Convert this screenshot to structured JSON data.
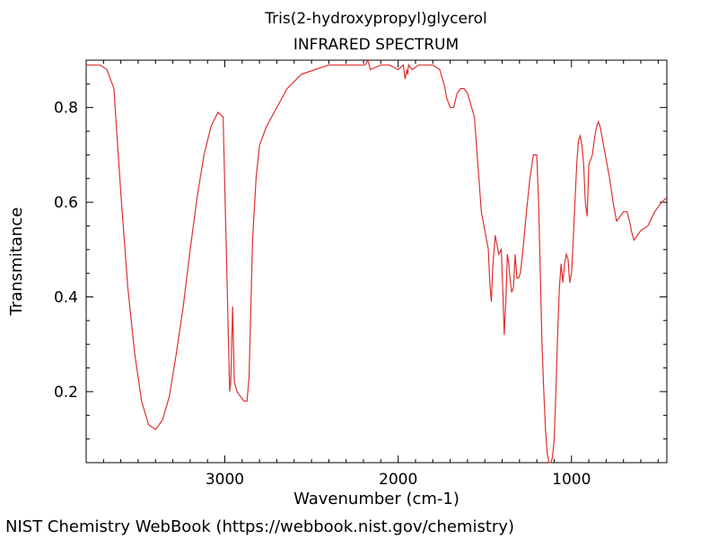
{
  "title": "Tris(2-hydroxypropyl)glycerol",
  "subtitle": "INFRARED SPECTRUM",
  "footer": "NIST Chemistry WebBook (https://webbook.nist.gov/chemistry)",
  "colors": {
    "trace": "#e03030",
    "axis": "#000000",
    "background": "#ffffff"
  },
  "chart_data": {
    "type": "line",
    "title": "Tris(2-hydroxypropyl)glycerol",
    "subtitle": "INFRARED SPECTRUM",
    "xlabel": "Wavenumber (cm-1)",
    "ylabel": "Transmitance",
    "xlim": [
      3800,
      450
    ],
    "ylim": [
      0.05,
      0.9
    ],
    "x_ticks": [
      3000,
      2000,
      1000
    ],
    "y_ticks": [
      0.2,
      0.4,
      0.6,
      0.8
    ],
    "x_tick_labels": [
      "3000",
      "2000",
      "1000"
    ],
    "y_tick_labels": [
      "0.2",
      "0.4",
      "0.6",
      "0.8"
    ],
    "grid": false,
    "series": [
      {
        "x": [
          3800,
          3720,
          3680,
          3640,
          3600,
          3560,
          3520,
          3480,
          3440,
          3400,
          3360,
          3320,
          3280,
          3240,
          3200,
          3160,
          3120,
          3080,
          3040,
          3010,
          2985,
          2972,
          2966,
          2955,
          2945,
          2930,
          2910,
          2890,
          2872,
          2860,
          2840,
          2820,
          2800,
          2760,
          2700,
          2640,
          2560,
          2480,
          2400,
          2330,
          2250,
          2190,
          2175,
          2160,
          2100,
          2050,
          2000,
          1970,
          1960,
          1950,
          1945,
          1940,
          1920,
          1880,
          1850,
          1800,
          1760,
          1745,
          1735,
          1720,
          1700,
          1680,
          1660,
          1640,
          1620,
          1600,
          1560,
          1520,
          1480,
          1470,
          1462,
          1455,
          1440,
          1420,
          1405,
          1395,
          1388,
          1378,
          1370,
          1362,
          1355,
          1345,
          1335,
          1325,
          1315,
          1305,
          1295,
          1280,
          1260,
          1240,
          1220,
          1200,
          1190,
          1180,
          1170,
          1160,
          1150,
          1140,
          1130,
          1120,
          1110,
          1100,
          1090,
          1080,
          1070,
          1060,
          1050,
          1040,
          1030,
          1020,
          1010,
          1000,
          990,
          980,
          970,
          960,
          950,
          940,
          930,
          920,
          910,
          900,
          880,
          865,
          855,
          845,
          835,
          825,
          815,
          800,
          780,
          760,
          740,
          720,
          700,
          680,
          665,
          655,
          640,
          620,
          600,
          560,
          520,
          480,
          450
        ],
        "y": [
          0.89,
          0.89,
          0.88,
          0.84,
          0.62,
          0.42,
          0.28,
          0.18,
          0.13,
          0.12,
          0.14,
          0.19,
          0.28,
          0.38,
          0.5,
          0.61,
          0.7,
          0.76,
          0.79,
          0.78,
          0.4,
          0.2,
          0.22,
          0.38,
          0.22,
          0.2,
          0.19,
          0.18,
          0.18,
          0.23,
          0.52,
          0.65,
          0.72,
          0.76,
          0.8,
          0.84,
          0.87,
          0.88,
          0.89,
          0.89,
          0.89,
          0.89,
          0.9,
          0.88,
          0.89,
          0.89,
          0.88,
          0.89,
          0.86,
          0.88,
          0.87,
          0.89,
          0.88,
          0.89,
          0.89,
          0.89,
          0.88,
          0.86,
          0.85,
          0.82,
          0.8,
          0.8,
          0.83,
          0.84,
          0.84,
          0.83,
          0.78,
          0.58,
          0.5,
          0.42,
          0.39,
          0.46,
          0.53,
          0.49,
          0.5,
          0.4,
          0.32,
          0.4,
          0.49,
          0.47,
          0.44,
          0.41,
          0.42,
          0.49,
          0.44,
          0.44,
          0.45,
          0.5,
          0.58,
          0.65,
          0.7,
          0.7,
          0.6,
          0.45,
          0.3,
          0.2,
          0.12,
          0.07,
          0.05,
          0.05,
          0.06,
          0.1,
          0.2,
          0.32,
          0.42,
          0.47,
          0.43,
          0.47,
          0.49,
          0.48,
          0.43,
          0.45,
          0.52,
          0.6,
          0.68,
          0.73,
          0.74,
          0.72,
          0.68,
          0.6,
          0.57,
          0.68,
          0.7,
          0.74,
          0.76,
          0.77,
          0.76,
          0.74,
          0.72,
          0.69,
          0.65,
          0.6,
          0.56,
          0.57,
          0.58,
          0.58,
          0.56,
          0.54,
          0.52,
          0.53,
          0.54,
          0.55,
          0.58,
          0.6,
          0.61
        ]
      }
    ]
  }
}
